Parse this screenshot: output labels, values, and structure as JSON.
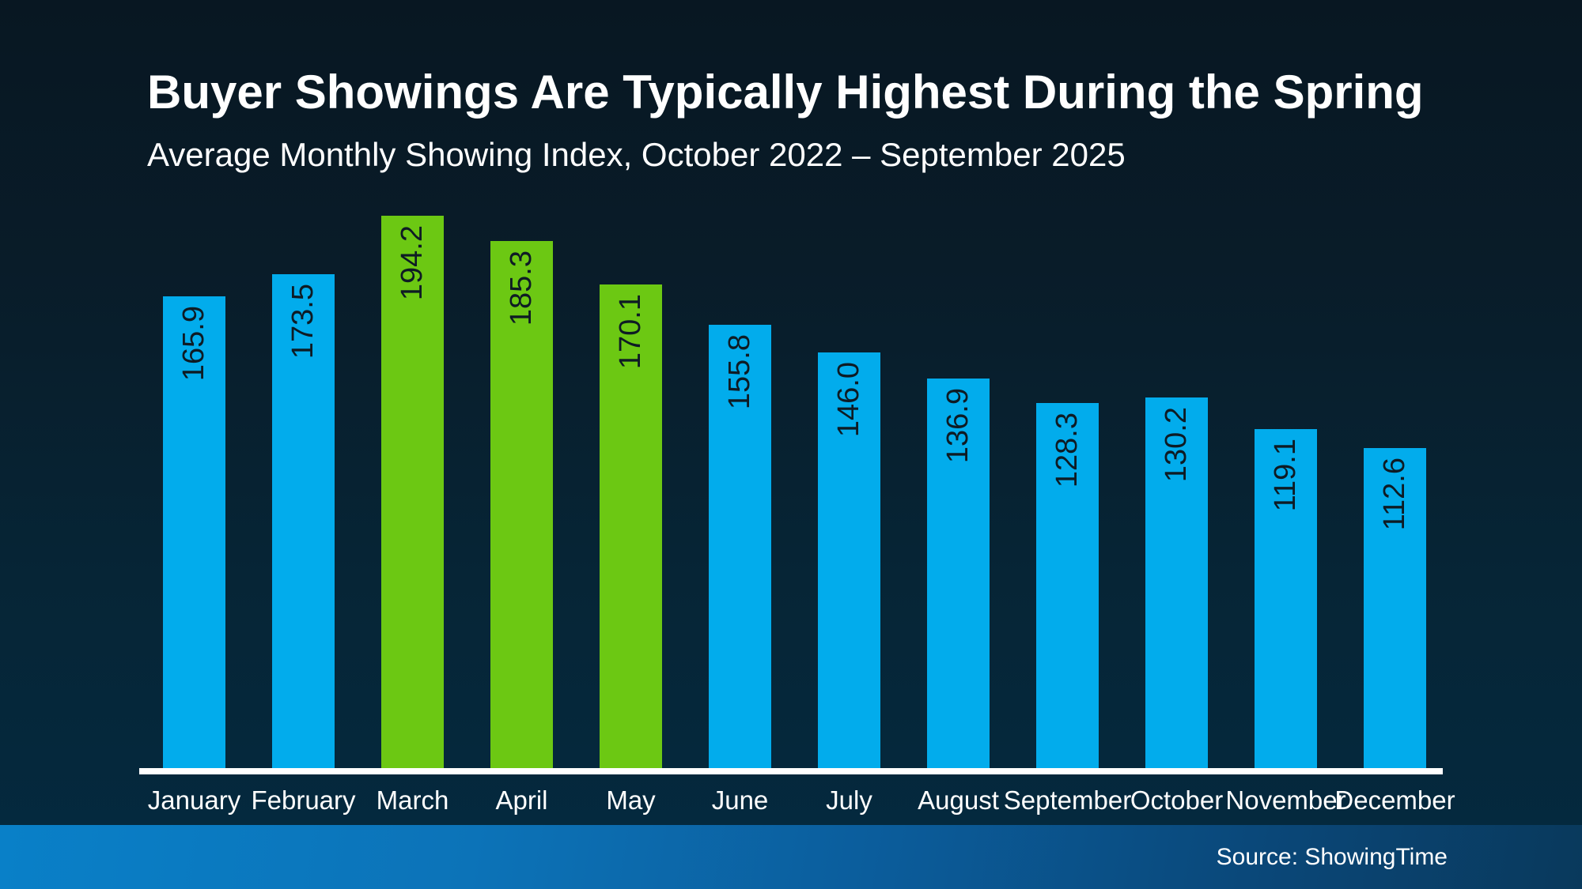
{
  "header": {
    "title": "Buyer Showings Are Typically Highest During the Spring",
    "subtitle": "Average Monthly Showing Index, October 2022 – September 2025"
  },
  "footer": {
    "source": "Source: ShowingTime"
  },
  "colors": {
    "background_top": "#081722",
    "background_bottom": "#042A40",
    "bar_blue": "#02ACEC",
    "bar_green": "#6CC813",
    "value_label_text": "#0E1B24",
    "axis_line": "#FFFFFF",
    "label_text": "#FFFFFF",
    "footer_gradient_left": "#0980C8",
    "footer_gradient_right": "#09395C"
  },
  "chart_data": {
    "type": "bar",
    "title": "Buyer Showings Are Typically Highest During the Spring",
    "subtitle": "Average Monthly Showing Index, October 2022 – September 2025",
    "categories": [
      "January",
      "February",
      "March",
      "April",
      "May",
      "June",
      "July",
      "August",
      "September",
      "October",
      "November",
      "December"
    ],
    "values": [
      165.9,
      173.5,
      194.2,
      185.3,
      170.1,
      155.8,
      146.0,
      136.9,
      128.3,
      130.2,
      119.1,
      112.6
    ],
    "value_labels": [
      "165.9",
      "173.5",
      "194.2",
      "185.3",
      "170.1",
      "155.8",
      "146.0",
      "136.9",
      "128.3",
      "130.2",
      "119.1",
      "112.6"
    ],
    "bar_colors": [
      "#02ACEC",
      "#02ACEC",
      "#6CC813",
      "#6CC813",
      "#6CC813",
      "#02ACEC",
      "#02ACEC",
      "#02ACEC",
      "#02ACEC",
      "#02ACEC",
      "#02ACEC",
      "#02ACEC"
    ],
    "highlighted_categories": [
      "March",
      "April",
      "May"
    ],
    "xlabel": "",
    "ylabel": "",
    "ylim": [
      0,
      200
    ],
    "grid": false,
    "legend": "none",
    "value_label_rotation_deg": -90,
    "source": "Source: ShowingTime"
  }
}
